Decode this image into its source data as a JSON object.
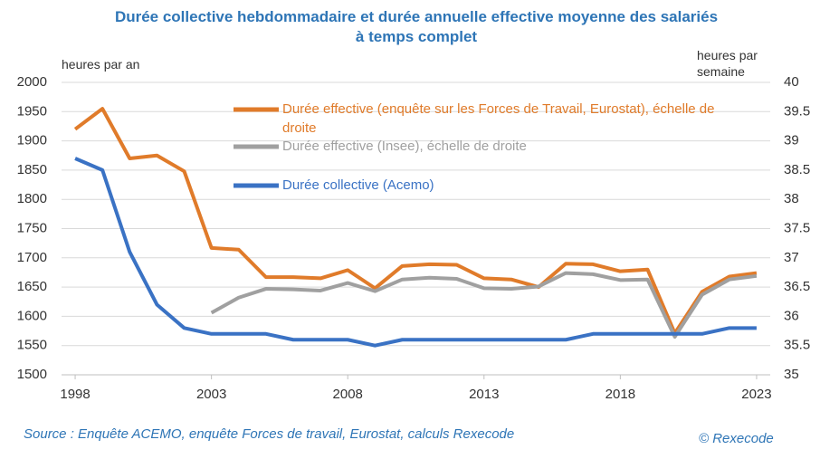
{
  "chart_data": {
    "type": "line",
    "title": "Durée collective hebdommadaire et durée annuelle effective moyenne des salariés à temps complet",
    "y_label": "heures par an",
    "y2_label": "heures par semaine",
    "source": "Source : Enquête ACEMO, enquête Forces de travail, Eurostat, calculs Rexecode",
    "credit": "© Rexecode",
    "x": [
      1998,
      1999,
      2000,
      2001,
      2002,
      2003,
      2004,
      2005,
      2006,
      2007,
      2008,
      2009,
      2010,
      2011,
      2012,
      2013,
      2014,
      2015,
      2016,
      2017,
      2018,
      2019,
      2020,
      2021,
      2022,
      2023
    ],
    "xlim": [
      1997.5,
      2023.5
    ],
    "xticks": [
      1998,
      2003,
      2008,
      2013,
      2018,
      2023
    ],
    "ylim": [
      1500,
      2000
    ],
    "yticks": [
      1500,
      1550,
      1600,
      1650,
      1700,
      1750,
      1800,
      1850,
      1900,
      1950,
      2000
    ],
    "y2lim": [
      35,
      40
    ],
    "y2ticks": [
      35,
      35.5,
      36,
      36.5,
      37,
      37.5,
      38,
      38.5,
      39,
      39.5,
      40
    ],
    "grid": true,
    "series": [
      {
        "name": "Durée effective (enquête sur les Forces de Travail, Eurostat), échelle de droite",
        "color": "#e07b2a",
        "axis": "y2",
        "values": [
          39.2,
          39.55,
          38.7,
          38.75,
          38.48,
          37.17,
          37.14,
          36.67,
          36.67,
          36.65,
          36.79,
          36.48,
          36.86,
          36.89,
          36.88,
          36.65,
          36.63,
          36.5,
          36.9,
          36.89,
          36.77,
          36.8,
          35.71,
          36.42,
          36.68,
          36.74
        ]
      },
      {
        "name": "Durée effective (Insee), échelle de droite",
        "color": "#a0a0a0",
        "axis": "y2",
        "values": [
          null,
          null,
          null,
          null,
          null,
          36.06,
          36.32,
          36.47,
          36.46,
          36.44,
          36.57,
          36.43,
          36.63,
          36.66,
          36.64,
          36.48,
          36.47,
          36.51,
          36.74,
          36.72,
          36.62,
          36.63,
          35.65,
          36.37,
          36.63,
          36.69
        ]
      },
      {
        "name": "Durée collective (Acemo)",
        "color": "#3a72c4",
        "values": [
          1870,
          1850,
          1710,
          1620,
          1580,
          1570,
          1570,
          1570,
          1560,
          1560,
          1560,
          1550,
          1560,
          1560,
          1560,
          1560,
          1560,
          1560,
          1560,
          1570,
          1570,
          1570,
          1570,
          1570,
          1580,
          1580
        ]
      }
    ]
  }
}
